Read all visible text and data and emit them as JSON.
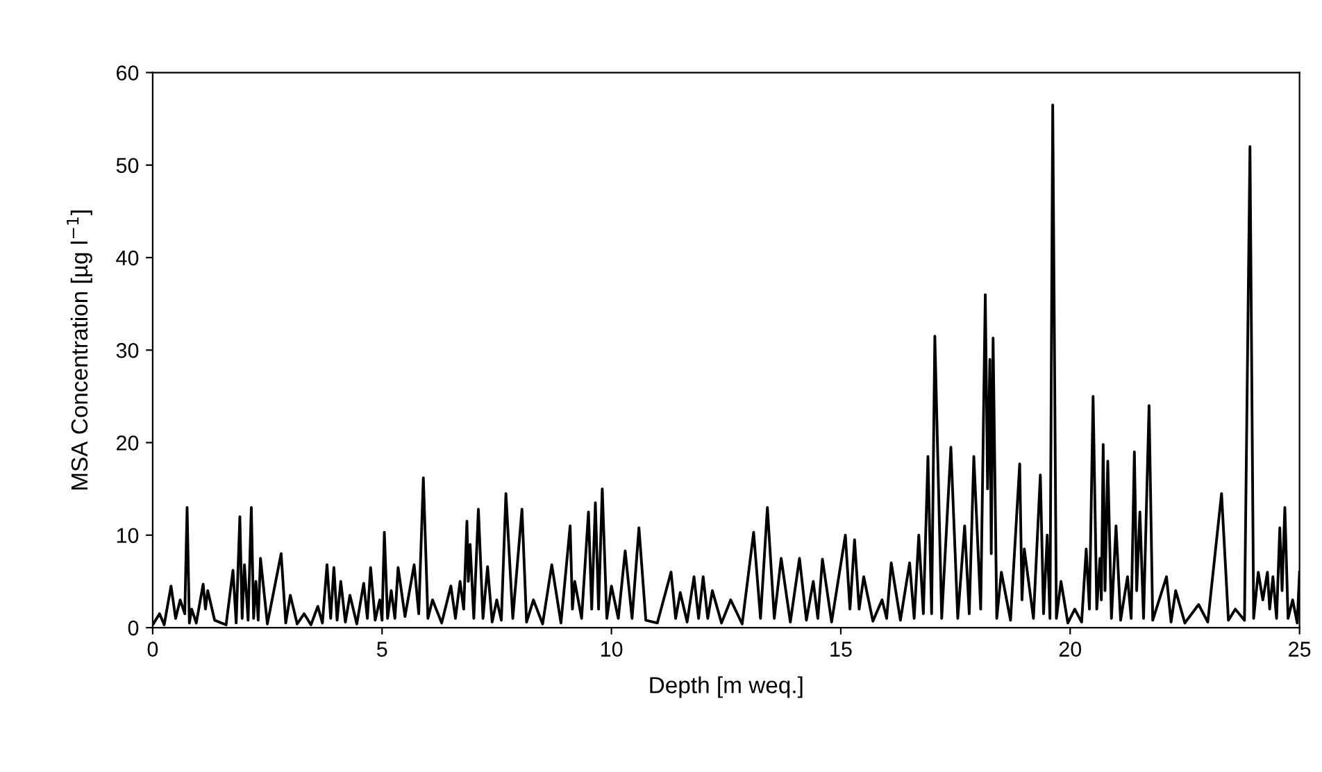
{
  "chart_data": {
    "type": "line",
    "xlabel": "Depth [m weq.]",
    "ylabel": "MSA Concentration [µg l$^{−1}$]",
    "xlim": [
      0,
      25
    ],
    "xticks": [
      0,
      5,
      10,
      15,
      20,
      25
    ],
    "ylim": [
      0,
      60
    ],
    "yticks": [
      0,
      10,
      20,
      30,
      40,
      50,
      60
    ],
    "grid": false,
    "marker": "none",
    "line_style": "solid",
    "series": [
      {
        "color": "#000000",
        "x": [
          0.0,
          0.15,
          0.25,
          0.4,
          0.5,
          0.6,
          0.7,
          0.75,
          0.8,
          0.85,
          0.95,
          1.1,
          1.15,
          1.2,
          1.35,
          1.6,
          1.75,
          1.82,
          1.9,
          1.95,
          2.0,
          2.08,
          2.15,
          2.2,
          2.25,
          2.3,
          2.35,
          2.5,
          2.8,
          2.9,
          3.0,
          3.15,
          3.3,
          3.45,
          3.6,
          3.7,
          3.8,
          3.88,
          3.95,
          4.02,
          4.1,
          4.2,
          4.3,
          4.45,
          4.6,
          4.68,
          4.75,
          4.85,
          4.95,
          5.0,
          5.05,
          5.12,
          5.2,
          5.28,
          5.35,
          5.5,
          5.7,
          5.8,
          5.9,
          6.0,
          6.1,
          6.3,
          6.5,
          6.6,
          6.7,
          6.78,
          6.85,
          6.88,
          6.92,
          7.0,
          7.1,
          7.2,
          7.3,
          7.4,
          7.5,
          7.6,
          7.7,
          7.85,
          8.05,
          8.15,
          8.3,
          8.5,
          8.7,
          8.9,
          9.1,
          9.15,
          9.2,
          9.35,
          9.5,
          9.57,
          9.65,
          9.72,
          9.8,
          9.9,
          10.0,
          10.15,
          10.3,
          10.45,
          10.6,
          10.75,
          11.0,
          11.3,
          11.4,
          11.5,
          11.65,
          11.8,
          11.9,
          12.0,
          12.1,
          12.2,
          12.4,
          12.6,
          12.85,
          13.1,
          13.25,
          13.4,
          13.55,
          13.7,
          13.9,
          14.1,
          14.25,
          14.4,
          14.5,
          14.6,
          14.8,
          15.1,
          15.2,
          15.3,
          15.4,
          15.5,
          15.7,
          15.9,
          16.0,
          16.1,
          16.3,
          16.5,
          16.6,
          16.7,
          16.8,
          16.9,
          16.98,
          17.05,
          17.2,
          17.4,
          17.55,
          17.7,
          17.8,
          17.9,
          18.05,
          18.15,
          18.2,
          18.25,
          18.28,
          18.32,
          18.4,
          18.5,
          18.7,
          18.9,
          18.95,
          19.0,
          19.2,
          19.35,
          19.42,
          19.5,
          19.56,
          19.62,
          19.7,
          19.8,
          19.95,
          20.1,
          20.25,
          20.35,
          20.42,
          20.5,
          20.58,
          20.65,
          20.68,
          20.72,
          20.76,
          20.82,
          20.9,
          21.0,
          21.1,
          21.25,
          21.33,
          21.4,
          21.45,
          21.52,
          21.6,
          21.72,
          21.8,
          22.1,
          22.2,
          22.3,
          22.5,
          22.8,
          23.0,
          23.3,
          23.45,
          23.6,
          23.8,
          23.92,
          24.0,
          24.1,
          24.2,
          24.3,
          24.35,
          24.42,
          24.5,
          24.57,
          24.62,
          24.68,
          24.75,
          24.85,
          24.95,
          25.0
        ],
        "values": [
          0.3,
          1.5,
          0.3,
          4.5,
          1.0,
          3,
          1.5,
          13,
          0.5,
          2,
          0.5,
          4.7,
          2,
          4,
          0.8,
          0.3,
          6.2,
          0.5,
          12,
          1,
          6.8,
          0.8,
          13,
          1,
          5,
          0.8,
          7.5,
          0.4,
          8,
          0.5,
          3.5,
          0.4,
          1.5,
          0.3,
          2.3,
          0.5,
          6.8,
          1,
          6.5,
          0.8,
          5,
          0.6,
          3.5,
          0.4,
          4.8,
          1,
          6.5,
          0.8,
          3,
          0.8,
          10.3,
          1,
          4,
          1,
          6.5,
          1.2,
          6.8,
          1.5,
          16.2,
          1,
          3,
          0.5,
          4.5,
          1,
          5,
          2,
          11.5,
          5,
          9,
          1,
          12.8,
          1,
          6.6,
          0.6,
          3,
          0.8,
          14.5,
          1,
          12.8,
          0.6,
          3,
          0.4,
          6.8,
          0.5,
          11,
          2,
          5,
          1,
          12.5,
          2,
          13.5,
          2,
          15,
          1,
          4.5,
          1,
          8.3,
          1,
          10.8,
          0.8,
          0.5,
          6,
          1,
          3.8,
          0.6,
          5.5,
          1,
          5.5,
          1,
          4,
          0.5,
          3,
          0.4,
          10.3,
          1,
          13,
          1,
          7.5,
          0.6,
          7.5,
          0.8,
          5,
          1,
          7.4,
          0.6,
          10,
          2,
          9.5,
          2,
          5.5,
          0.7,
          3,
          1,
          7,
          0.8,
          7,
          1,
          10,
          1.5,
          18.5,
          1.5,
          31.5,
          1,
          19.5,
          1,
          11,
          1.5,
          18.5,
          2,
          36,
          15,
          29,
          8,
          31.3,
          1,
          6,
          0.8,
          17.7,
          3,
          8.5,
          1,
          16.5,
          1.5,
          10,
          1,
          56.5,
          1,
          5,
          0.5,
          2,
          0.6,
          8.5,
          2,
          25,
          2,
          7.5,
          3,
          19.8,
          4,
          18,
          1,
          11,
          0.8,
          5.5,
          1,
          19,
          4,
          12.5,
          1,
          24,
          0.8,
          5.5,
          0.6,
          4,
          0.5,
          2.5,
          0.6,
          14.5,
          0.8,
          2,
          0.8,
          52,
          1,
          6,
          3,
          6,
          2,
          5.5,
          1,
          10.8,
          4,
          13,
          1,
          3,
          0.5,
          6
        ]
      }
    ]
  }
}
